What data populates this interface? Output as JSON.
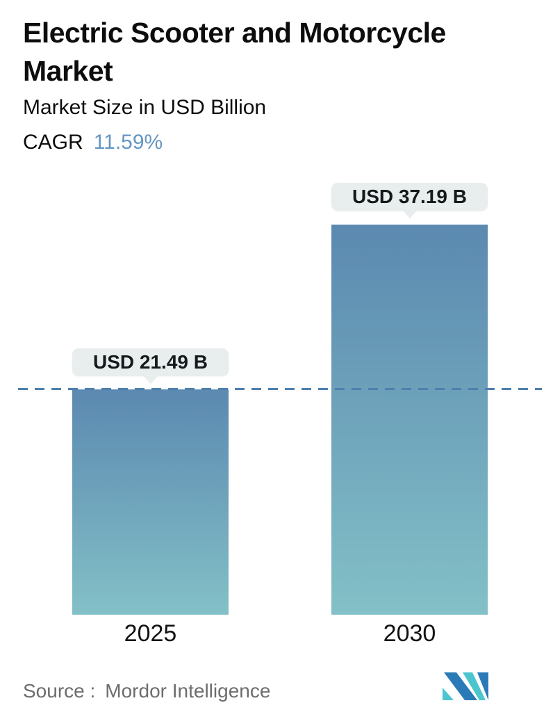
{
  "header": {
    "title": "Electric Scooter and Motorcycle Market",
    "subtitle": "Market Size in USD Billion",
    "cagr_label": "CAGR",
    "cagr_value": "11.59%"
  },
  "chart_data": {
    "type": "bar",
    "title": "Electric Scooter and Motorcycle Market",
    "subtitle": "Market Size in USD Billion",
    "cagr_percent": 11.59,
    "categories": [
      "2025",
      "2030"
    ],
    "values": [
      21.49,
      37.19
    ],
    "unit": "USD Billion",
    "bar_labels": [
      "USD 21.49 B",
      "USD 37.19 B"
    ],
    "ylim": [
      0,
      37.19
    ],
    "grid": false,
    "legend": "none",
    "annotations": [
      "dashed horizontal reference line at 2025 value (21.49) spanning chart width"
    ]
  },
  "footer": {
    "source_label": "Source :",
    "source_value": "Mordor Intelligence",
    "logo": "mordor-intelligence-logo"
  },
  "colors": {
    "title_text": "#0d0d0d",
    "accent_blue": "#6496c3",
    "bar_top": "#5b89b0",
    "bar_bottom": "#83c0c7",
    "dashed_line": "#4d80ac",
    "bubble_bg": "#e8edee",
    "bubble_text": "#15191c",
    "year_text": "#121212",
    "source_text": "#6d6d6d",
    "logo_blue": "#2a7ab8",
    "logo_teal": "#4cc5cf"
  }
}
